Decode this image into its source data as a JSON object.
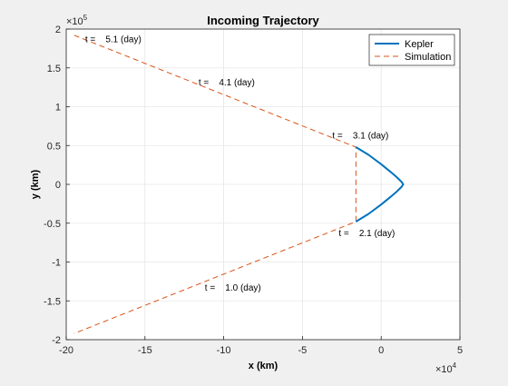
{
  "chart_data": {
    "type": "line",
    "title": "Incoming Trajectory",
    "xlabel": "x (km)",
    "ylabel": "y (km)",
    "x_multiplier": "×10^4",
    "y_multiplier": "×10^5",
    "xlim": [
      -200000,
      50000
    ],
    "ylim": [
      -200000,
      200000
    ],
    "xticks": [
      -200000,
      -150000,
      -100000,
      -50000,
      0,
      50000
    ],
    "xtick_labels": [
      "-20",
      "-15",
      "-10",
      "-5",
      "0",
      "5"
    ],
    "yticks": [
      -200000,
      -150000,
      -100000,
      -50000,
      0,
      50000,
      100000,
      150000,
      200000
    ],
    "ytick_labels": [
      "-2",
      "-1.5",
      "-1",
      "-0.5",
      "0",
      "0.5",
      "1",
      "1.5",
      "2"
    ],
    "grid": true,
    "legend_position": "top-right",
    "series": [
      {
        "name": "Kepler",
        "style": "solid",
        "color": "#0072BD",
        "points": [
          [
            -16000,
            48000
          ],
          [
            -8000,
            38000
          ],
          [
            0,
            26000
          ],
          [
            6000,
            16000
          ],
          [
            10000,
            9000
          ],
          [
            13000,
            3000
          ],
          [
            14000,
            0
          ],
          [
            13000,
            -3000
          ],
          [
            10000,
            -9000
          ],
          [
            6000,
            -16000
          ],
          [
            0,
            -26000
          ],
          [
            -8000,
            -38000
          ],
          [
            -16000,
            -48000
          ]
        ]
      },
      {
        "name": "Simulation",
        "style": "dashed",
        "color": "#D95319",
        "points": [
          [
            -195000,
            192000
          ],
          [
            -16000,
            48000
          ],
          [
            -16000,
            -48000
          ],
          [
            -195000,
            -192000
          ]
        ]
      }
    ],
    "annotations": [
      {
        "text": "t =    5.1 (day)",
        "x": -188000,
        "y": 188000
      },
      {
        "text": "t =    4.1 (day)",
        "x": -116000,
        "y": 132000
      },
      {
        "text": "t =    3.1 (day)",
        "x": -31000,
        "y": 64000
      },
      {
        "text": "t =    2.1 (day)",
        "x": -27000,
        "y": -62000
      },
      {
        "text": "t =    1.0 (day)",
        "x": -112000,
        "y": -132000
      }
    ]
  }
}
